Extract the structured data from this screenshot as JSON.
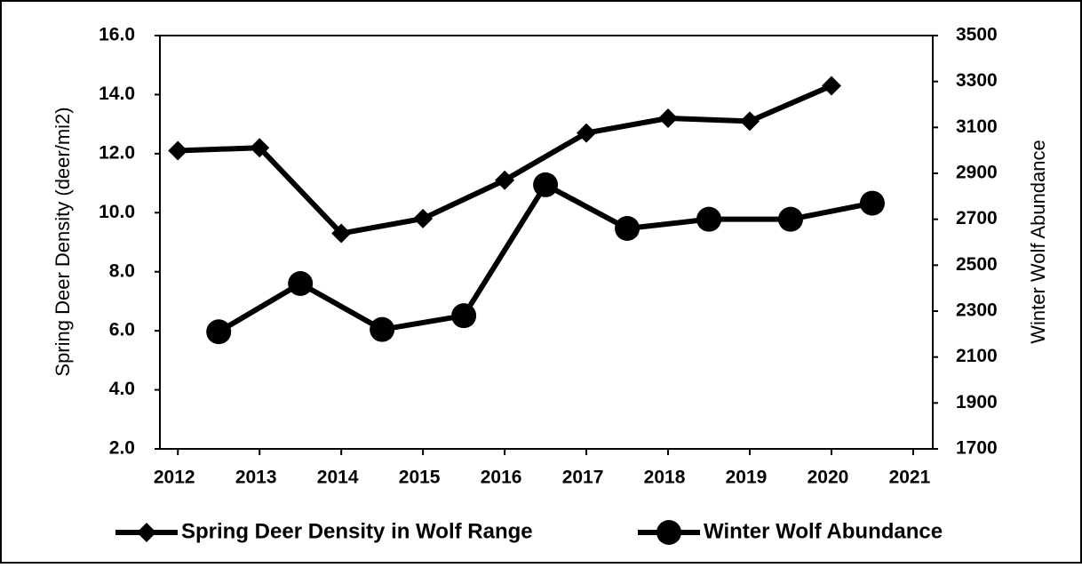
{
  "chart_data": {
    "type": "line",
    "ylabel": "Spring Deer Density (deer/mi2)",
    "y2label": "Winter Wolf Abundance",
    "xlim": [
      2011.78,
      2021.24
    ],
    "xticks": [
      2012,
      2013,
      2014,
      2015,
      2016,
      2017,
      2018,
      2019,
      2020,
      2021
    ],
    "ylim": [
      2,
      16
    ],
    "yticks": [
      {
        "value": 2,
        "label": "2.0"
      },
      {
        "value": 4,
        "label": "4.0"
      },
      {
        "value": 6,
        "label": "6.0"
      },
      {
        "value": 8,
        "label": "8.0"
      },
      {
        "value": 10,
        "label": "10.0"
      },
      {
        "value": 12,
        "label": "12.0"
      },
      {
        "value": 14,
        "label": "14.0"
      },
      {
        "value": 16,
        "label": "16.0"
      }
    ],
    "y2lim": [
      1700,
      3500
    ],
    "y2ticks": [
      1700,
      1900,
      2100,
      2300,
      2500,
      2700,
      2900,
      3100,
      3300,
      3500
    ],
    "series": [
      {
        "name": "Spring Deer Density in Wolf Range",
        "color": "#000000",
        "marker": "diamond",
        "x": [
          2012,
          2013,
          2014,
          2015,
          2016,
          2017,
          2018,
          2019,
          2020
        ],
        "values": [
          12.1,
          12.2,
          9.3,
          9.8,
          11.1,
          12.7,
          13.2,
          13.1,
          14.3
        ]
      },
      {
        "name": "Winter Wolf Abundance",
        "color": "#000000",
        "marker": "circle",
        "axis": "y2",
        "x": [
          2012.5,
          2013.5,
          2014.5,
          2015.5,
          2016.5,
          2017.5,
          2018.5,
          2019.5,
          2020.5
        ],
        "values": [
          2210,
          2420,
          2220,
          2280,
          2850,
          2660,
          2700,
          2700,
          2770
        ]
      }
    ]
  }
}
